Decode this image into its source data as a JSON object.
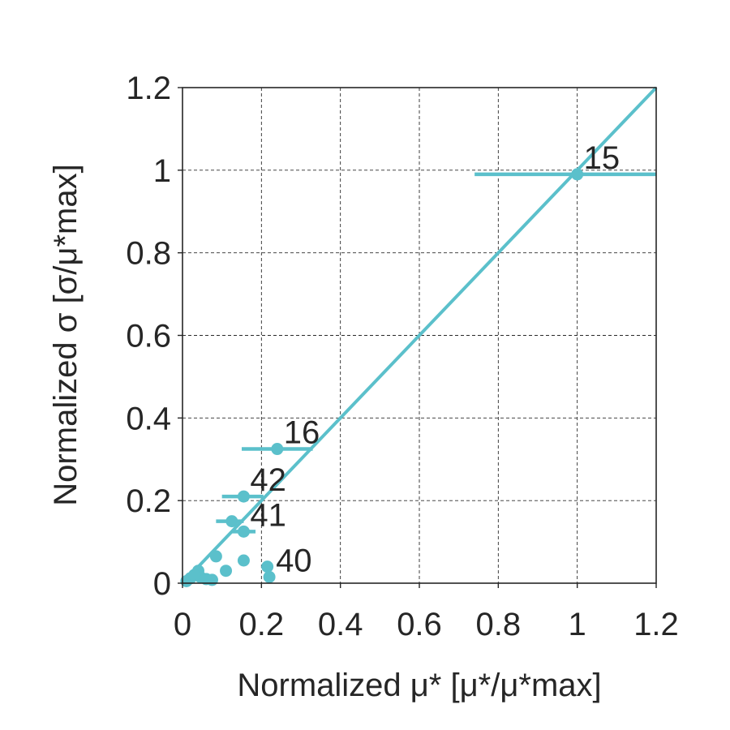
{
  "chart_data": {
    "type": "scatter",
    "title": "",
    "xlabel": "Normalized μ*  [μ*/μ*max]",
    "ylabel": "Normalized σ [σ/μ*max]",
    "xlim": [
      0,
      1.2
    ],
    "ylim": [
      0,
      1.2
    ],
    "x_ticks": [
      0,
      0.2,
      0.4,
      0.6,
      0.8,
      1,
      1.2
    ],
    "y_ticks": [
      0,
      0.2,
      0.4,
      0.6,
      0.8,
      1,
      1.2
    ],
    "x_tick_labels": [
      "0",
      "0.2",
      "0.4",
      "0.6",
      "0.8",
      "1",
      "1.2"
    ],
    "y_tick_labels": [
      "0",
      "0.2",
      "0.4",
      "0.6",
      "0.8",
      "1",
      "1.2"
    ],
    "grid": true,
    "color": "#5bc0cb",
    "points": [
      {
        "x": 1.0,
        "y": 0.99,
        "xerr": [
          0.26,
          0.2
        ],
        "label": "15"
      },
      {
        "x": 0.24,
        "y": 0.325,
        "xerr": [
          0.09,
          0.09
        ],
        "label": "16"
      },
      {
        "x": 0.155,
        "y": 0.21,
        "xerr": [
          0.055,
          0.05
        ],
        "label": "42"
      },
      {
        "x": 0.125,
        "y": 0.15,
        "xerr": [
          0.04,
          0.03
        ],
        "label": ""
      },
      {
        "x": 0.155,
        "y": 0.125,
        "xerr": [
          0.03,
          0.03
        ],
        "label": "41"
      },
      {
        "x": 0.085,
        "y": 0.065,
        "label": ""
      },
      {
        "x": 0.155,
        "y": 0.055,
        "label": ""
      },
      {
        "x": 0.215,
        "y": 0.04,
        "label": ""
      },
      {
        "x": 0.22,
        "y": 0.015,
        "label": "40"
      },
      {
        "x": 0.11,
        "y": 0.03,
        "label": ""
      },
      {
        "x": 0.04,
        "y": 0.03,
        "label": ""
      },
      {
        "x": 0.045,
        "y": 0.015,
        "label": ""
      },
      {
        "x": 0.075,
        "y": 0.008,
        "label": ""
      },
      {
        "x": 0.02,
        "y": 0.012,
        "label": ""
      },
      {
        "x": 0.01,
        "y": 0.005,
        "label": ""
      },
      {
        "x": 0.03,
        "y": 0.02,
        "label": ""
      },
      {
        "x": 0.06,
        "y": 0.01,
        "label": ""
      }
    ],
    "reference_line": {
      "x": [
        0,
        1.2
      ],
      "y": [
        0,
        1.2
      ]
    }
  }
}
